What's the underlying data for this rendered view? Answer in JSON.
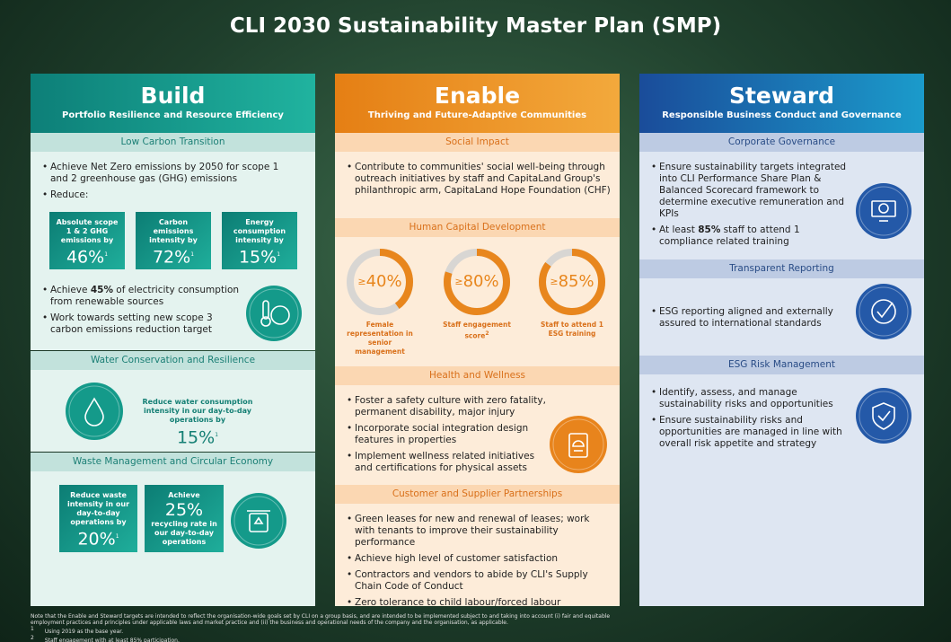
{
  "title": "CLI 2030 Sustainability Master Plan (SMP)",
  "build": {
    "title": "Build",
    "subtitle": "Portfolio Resilience and Resource Efficiency",
    "low_carbon": {
      "heading": "Low Carbon Transition",
      "bullets": [
        "Achieve Net Zero emissions by 2050 for scope 1 and 2 greenhouse gas (GHG) emissions",
        "Reduce:"
      ],
      "tiles": [
        {
          "label": "Absolute scope 1 & 2 GHG emissions by",
          "value": "46%",
          "note": "1"
        },
        {
          "label": "Carbon emissions intensity by",
          "value": "72%",
          "note": "1"
        },
        {
          "label": "Energy consumption intensity by",
          "value": "15%",
          "note": "1"
        }
      ],
      "more_bullets": [
        [
          "Achieve ",
          "45%",
          " of electricity consumption from renewable sources"
        ],
        [
          "Work towards setting new scope 3 carbon emissions reduction target"
        ]
      ]
    },
    "water": {
      "heading": "Water Conservation and Resilience",
      "text": "Reduce water consumption intensity in our day-to-day operations by",
      "value": "15%",
      "note": "1"
    },
    "waste": {
      "heading": "Waste Management and Circular Economy",
      "tile1": {
        "label": "Reduce waste intensity in our day-to-day operations by",
        "value": "20%",
        "note": "1"
      },
      "tile2": {
        "label": "Achieve",
        "value": "25%",
        "after": "recycling rate in our day-to-day operations"
      }
    }
  },
  "enable": {
    "title": "Enable",
    "subtitle": "Thriving and Future-Adaptive Communities",
    "social": {
      "heading": "Social Impact",
      "bullets": [
        [
          "Contribute to communities' social well-being through outreach initiatives by staff and CapitaLand Group's philanthropic arm, CapitaLand Hope Foundation (CHF)"
        ]
      ]
    },
    "human": {
      "heading": "Human Capital Development",
      "rings": [
        {
          "prefix": "≥",
          "value": 40,
          "value_label": "40%",
          "label": "Female representation in senior management"
        },
        {
          "prefix": "≥",
          "value": 80,
          "value_label": "80%",
          "label": "Staff engagement score",
          "note": "2"
        },
        {
          "prefix": "≥",
          "value": 85,
          "value_label": "85%",
          "label": "Staff to attend 1 ESG training"
        }
      ]
    },
    "health": {
      "heading": "Health and Wellness",
      "bullets": [
        [
          "Foster a safety culture with zero fatality, permanent disability, major injury"
        ],
        [
          "Incorporate social integration design features in properties"
        ],
        [
          "Implement wellness related initiatives and certifications for physical assets"
        ]
      ]
    },
    "customer": {
      "heading": "Customer and Supplier Partnerships",
      "bullets": [
        [
          "Green leases for new and renewal of leases; work with tenants to improve their sustainability performance"
        ],
        [
          "Achieve high level of customer satisfaction"
        ],
        [
          "Contractors and vendors to abide by CLI's Supply Chain Code of Conduct"
        ],
        [
          "Zero tolerance to child labour/forced labour"
        ]
      ]
    }
  },
  "steward": {
    "title": "Steward",
    "subtitle": "Responsible Business Conduct and Governance",
    "governance": {
      "heading": "Corporate Governance",
      "bullets": [
        [
          "Ensure sustainability targets integrated into CLI Performance Share Plan & Balanced Scorecard framework to determine executive remuneration and KPIs"
        ],
        [
          "At least ",
          "85%",
          " staff to attend 1 compliance related training"
        ]
      ]
    },
    "reporting": {
      "heading": "Transparent Reporting",
      "bullets": [
        [
          "ESG reporting aligned and externally assured to international standards"
        ]
      ]
    },
    "risk": {
      "heading": "ESG Risk Management",
      "bullets": [
        [
          "Identify, assess, and manage sustainability risks and opportunities"
        ],
        [
          "Ensure sustainability risks and opportunities are managed in line with overall risk appetite and strategy"
        ]
      ]
    }
  },
  "footnotes": {
    "note": "Note that the Enable and Steward targets are intended to reflect the organisation-wide goals set by CLI on a group basis, and are intended to be implemented subject to and taking into account (i) fair and equitable employment practices and principles under applicable laws and market practice and (ii) the business and operational needs of the company and the organisation, as applicable.",
    "items": [
      {
        "mark": "1",
        "text": "Using 2019 as the base year."
      },
      {
        "mark": "2",
        "text": "Staff engagement with at least 85% participation."
      }
    ]
  }
}
